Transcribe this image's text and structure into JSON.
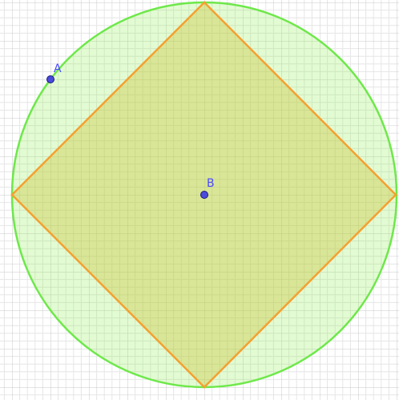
{
  "points": [
    {
      "label": "A"
    },
    {
      "label": "B"
    }
  ]
}
